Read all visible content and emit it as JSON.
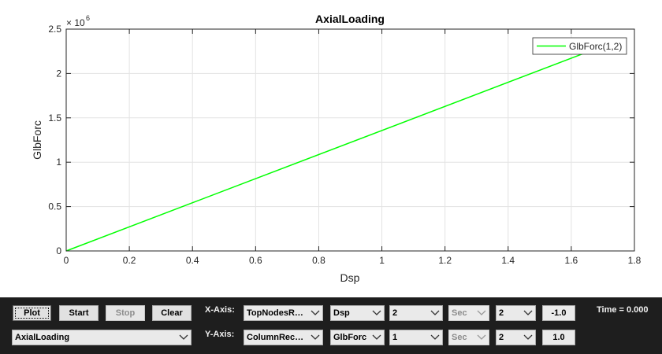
{
  "chart_data": {
    "type": "line",
    "title": "AxialLoading",
    "xlabel": "Dsp",
    "ylabel": "GlbForc",
    "y_exponent_base": "× 10",
    "y_exponent_power": "6",
    "xlim": [
      0,
      1.8
    ],
    "ylim": [
      0,
      2500000
    ],
    "grid": true,
    "legend_placement": "top-right",
    "x_ticks": [
      0,
      0.2,
      0.4,
      0.6,
      0.8,
      1,
      1.2,
      1.4,
      1.6,
      1.8
    ],
    "x_tick_labels": [
      "0",
      "0.2",
      "0.4",
      "0.6",
      "0.8",
      "1",
      "1.2",
      "1.4",
      "1.6",
      "1.8"
    ],
    "y_ticks": [
      0,
      500000,
      1000000,
      1500000,
      2000000,
      2500000
    ],
    "y_tick_labels": [
      "0",
      "0.5",
      "1",
      "1.5",
      "2",
      "2.5"
    ],
    "series": [
      {
        "name": "GlbForc(1,2)",
        "color": "#00ff00",
        "x": [
          0,
          1.65
        ],
        "y": [
          0,
          2240000
        ]
      }
    ]
  },
  "controls": {
    "plot_label": "Plot",
    "start_label": "Start",
    "stop_label": "Stop",
    "clear_label": "Clear",
    "xaxis_label": "X-Axis:",
    "yaxis_label": "Y-Axis:",
    "time_text": "Time =  0.000",
    "model_select": "AxialLoading",
    "x_source": "TopNodesR…",
    "x_quantity": "Dsp",
    "x_index": "2",
    "x_unit": "Sec",
    "x_component": "2",
    "x_scale": "-1.0",
    "y_source": "ColumnRec…",
    "y_quantity": "GlbForc",
    "y_index": "1",
    "y_unit": "Sec",
    "y_component": "2",
    "y_scale": "1.0"
  }
}
